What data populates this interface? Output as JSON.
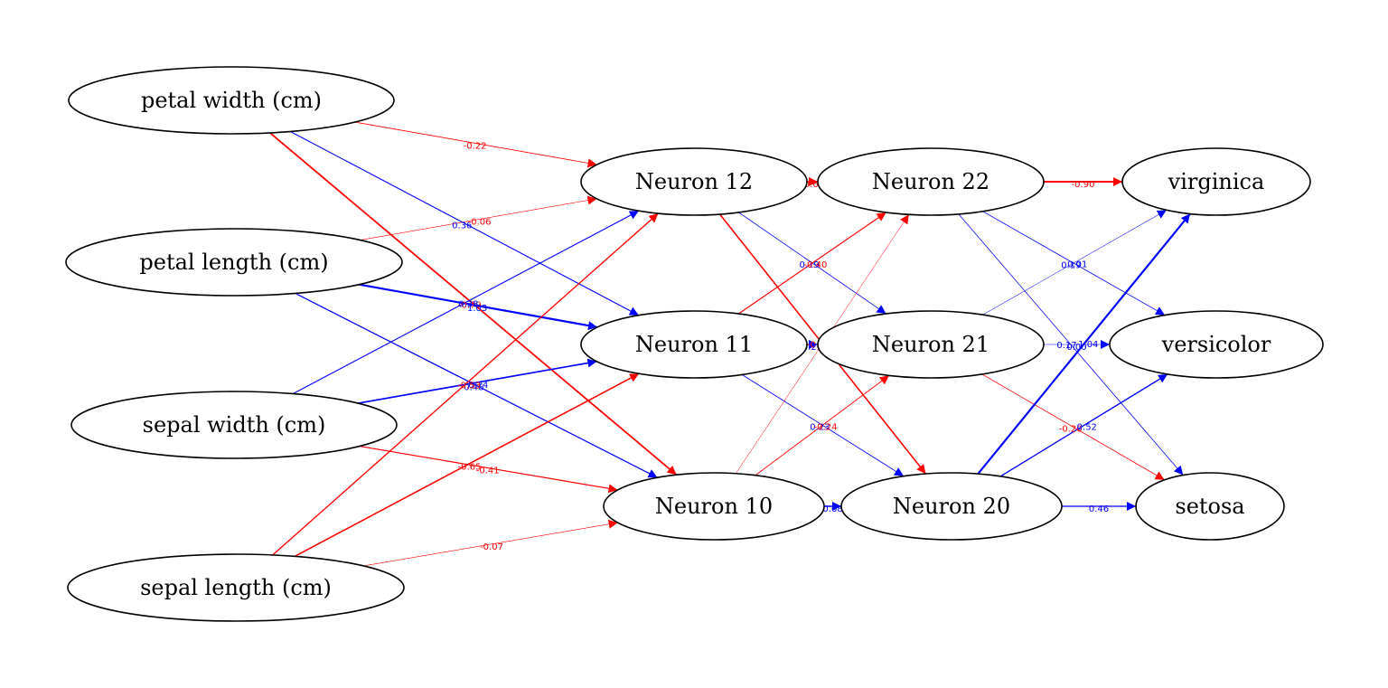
{
  "colors": {
    "positive": "#0000ff",
    "negative": "#ff0000"
  },
  "nodes": [
    {
      "id": "pw",
      "label": "petal width (cm)"
    },
    {
      "id": "pl",
      "label": "petal length (cm)"
    },
    {
      "id": "sw",
      "label": "sepal width (cm)"
    },
    {
      "id": "sl",
      "label": "sepal length (cm)"
    },
    {
      "id": "n12",
      "label": "Neuron 12"
    },
    {
      "id": "n11",
      "label": "Neuron 11"
    },
    {
      "id": "n10",
      "label": "Neuron 10"
    },
    {
      "id": "n22",
      "label": "Neuron 22"
    },
    {
      "id": "n21",
      "label": "Neuron 21"
    },
    {
      "id": "n20",
      "label": "Neuron 20"
    },
    {
      "id": "virginica",
      "label": "virginica"
    },
    {
      "id": "versicolor",
      "label": "versicolor"
    },
    {
      "id": "setosa",
      "label": "setosa"
    }
  ],
  "edges": [
    {
      "from": "pw",
      "to": "n12",
      "weight": "-0.22"
    },
    {
      "from": "pw",
      "to": "n11",
      "weight": "0.36"
    },
    {
      "from": "pw",
      "to": "n10",
      "weight": "-0.79"
    },
    {
      "from": "pl",
      "to": "n12",
      "weight": "-0.06"
    },
    {
      "from": "pl",
      "to": "n11",
      "weight": "1.03"
    },
    {
      "from": "pl",
      "to": "n10",
      "weight": "0.46"
    },
    {
      "from": "sw",
      "to": "n12",
      "weight": "0.38"
    },
    {
      "from": "sw",
      "to": "n11",
      "weight": "0.74"
    },
    {
      "from": "sw",
      "to": "n10",
      "weight": "-0.41"
    },
    {
      "from": "sl",
      "to": "n12",
      "weight": "-0.53"
    },
    {
      "from": "sl",
      "to": "n11",
      "weight": "-0.65"
    },
    {
      "from": "sl",
      "to": "n10",
      "weight": "-0.07"
    },
    {
      "from": "n12",
      "to": "n22",
      "weight": "-0.61"
    },
    {
      "from": "n12",
      "to": "n21",
      "weight": "0.19"
    },
    {
      "from": "n12",
      "to": "n20",
      "weight": "-0.66"
    },
    {
      "from": "n11",
      "to": "n22",
      "weight": "-0.40"
    },
    {
      "from": "n11",
      "to": "n21",
      "weight": "0.23"
    },
    {
      "from": "n11",
      "to": "n20",
      "weight": "0.23"
    },
    {
      "from": "n10",
      "to": "n22",
      "weight": "-0.0"
    },
    {
      "from": "n10",
      "to": "n21",
      "weight": "-0.24"
    },
    {
      "from": "n10",
      "to": "n20",
      "weight": "0.68"
    },
    {
      "from": "n22",
      "to": "virginica",
      "weight": "-0.90"
    },
    {
      "from": "n22",
      "to": "versicolor",
      "weight": "0.19"
    },
    {
      "from": "n22",
      "to": "setosa",
      "weight": "0.17"
    },
    {
      "from": "n21",
      "to": "virginica",
      "weight": "0.01"
    },
    {
      "from": "n21",
      "to": "versicolor",
      "weight": "0.00"
    },
    {
      "from": "n21",
      "to": "setosa",
      "weight": "-0.20"
    },
    {
      "from": "n20",
      "to": "virginica",
      "weight": "1.04"
    },
    {
      "from": "n20",
      "to": "versicolor",
      "weight": "0.52"
    },
    {
      "from": "n20",
      "to": "setosa",
      "weight": "0.46"
    }
  ]
}
